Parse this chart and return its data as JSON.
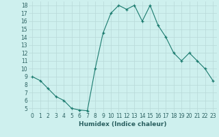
{
  "x": [
    0,
    1,
    2,
    3,
    4,
    5,
    6,
    7,
    8,
    9,
    10,
    11,
    12,
    13,
    14,
    15,
    16,
    17,
    18,
    19,
    20,
    21,
    22,
    23
  ],
  "y": [
    9.0,
    8.5,
    7.5,
    6.5,
    6.0,
    5.0,
    4.8,
    4.7,
    10.0,
    14.5,
    17.0,
    18.0,
    17.5,
    18.0,
    16.0,
    18.0,
    15.5,
    14.0,
    12.0,
    11.0,
    12.0,
    11.0,
    10.0,
    8.5
  ],
  "xlabel": "Humidex (Indice chaleur)",
  "ylim": [
    4.5,
    18.5
  ],
  "xlim": [
    -0.5,
    23.5
  ],
  "yticks": [
    5,
    6,
    7,
    8,
    9,
    10,
    11,
    12,
    13,
    14,
    15,
    16,
    17,
    18
  ],
  "xticks": [
    0,
    1,
    2,
    3,
    4,
    5,
    6,
    7,
    8,
    9,
    10,
    11,
    12,
    13,
    14,
    15,
    16,
    17,
    18,
    19,
    20,
    21,
    22,
    23
  ],
  "line_color": "#1a7a6e",
  "marker": "+",
  "bg_color": "#cef0ee",
  "grid_color": "#b8d8d8",
  "font_color": "#2a6060",
  "tick_fontsize": 5.5,
  "xlabel_fontsize": 6.5
}
